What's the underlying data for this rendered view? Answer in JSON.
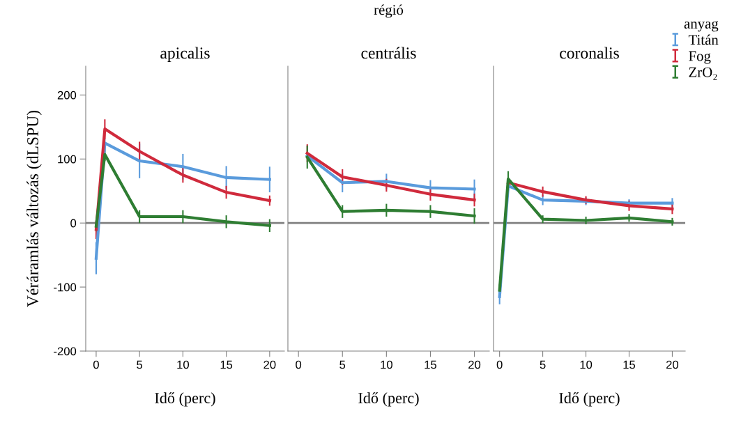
{
  "chart_data": [
    {
      "type": "line",
      "title": "apicalis",
      "xlabel": "Idő (perc)",
      "ylabel": "Véráramlás változás (dLSPU)",
      "x": [
        0,
        1,
        5,
        10,
        15,
        20
      ],
      "xlim": [
        -1.2,
        21.7
      ],
      "xticks": [
        0,
        5,
        10,
        15,
        20
      ],
      "ylim": [
        -200,
        245
      ],
      "yticks": [
        -200,
        -100,
        0,
        100,
        200
      ],
      "ref_lines": [
        {
          "axis": "y",
          "value": 0,
          "color": "#808080"
        }
      ],
      "series": [
        {
          "color": "#5a9bdc",
          "values": [
            -55,
            125,
            97,
            88,
            71,
            68
          ],
          "errors": [
            25,
            8,
            27,
            20,
            18,
            20
          ]
        },
        {
          "color": "#d02a3c",
          "values": [
            -10,
            147,
            112,
            75,
            48,
            35
          ],
          "errors": [
            15,
            15,
            15,
            12,
            10,
            8
          ]
        },
        {
          "color": "#2e7d32",
          "values": [
            -5,
            107,
            10,
            10,
            2,
            -4
          ],
          "errors": [
            8,
            10,
            10,
            10,
            10,
            10
          ]
        }
      ]
    },
    {
      "type": "line",
      "title": "centrális",
      "xlabel": "Idő (perc)",
      "annotations": [
        "régió"
      ],
      "tick_labels": "x",
      "x": [
        1,
        5,
        10,
        15,
        20
      ],
      "xlim": [
        -1.2,
        21.7
      ],
      "xticks": [
        0,
        5,
        10,
        15,
        20
      ],
      "ylim": [
        -200,
        245
      ],
      "ref_lines": [
        {
          "axis": "y",
          "value": 0,
          "color": "#808080"
        }
      ],
      "series": [
        {
          "color": "#5a9bdc",
          "values": [
            105,
            63,
            65,
            55,
            53
          ],
          "errors": [
            null,
            15,
            12,
            12,
            15
          ]
        },
        {
          "color": "#d02a3c",
          "values": [
            109,
            72,
            59,
            45,
            36
          ],
          "errors": [
            14,
            12,
            10,
            10,
            10
          ]
        },
        {
          "color": "#2e7d32",
          "values": [
            103,
            18,
            20,
            18,
            11
          ],
          "errors": [
            18,
            10,
            10,
            10,
            12
          ]
        }
      ]
    },
    {
      "type": "line",
      "title": "coronalis",
      "xlabel": "Idő (perc)",
      "tick_labels": "x",
      "legend": "top right",
      "legend_title": "anyag",
      "x": [
        0,
        1,
        5,
        10,
        15,
        20
      ],
      "xlim": [
        -0.7,
        21.5
      ],
      "xticks": [
        0,
        5,
        10,
        15,
        20
      ],
      "ylim": [
        -200,
        245
      ],
      "ref_lines": [
        {
          "axis": "y",
          "value": 0,
          "color": "#808080"
        }
      ],
      "series": [
        {
          "name": "Titán",
          "color": "#5a9bdc",
          "values": [
            -115,
            58,
            36,
            34,
            31,
            31
          ],
          "errors": [
            12,
            8,
            8,
            6,
            6,
            8
          ]
        },
        {
          "name": "Fog",
          "color": "#d02a3c",
          "values": [
            null,
            63,
            49,
            36,
            27,
            22
          ],
          "errors": [
            null,
            null,
            8,
            6,
            8,
            8
          ]
        },
        {
          "name": "ZrO₂",
          "color": "#2e7d32",
          "values": [
            -105,
            69,
            6,
            4,
            8,
            2
          ],
          "errors": [
            10,
            12,
            6,
            6,
            6,
            6
          ]
        }
      ]
    }
  ]
}
